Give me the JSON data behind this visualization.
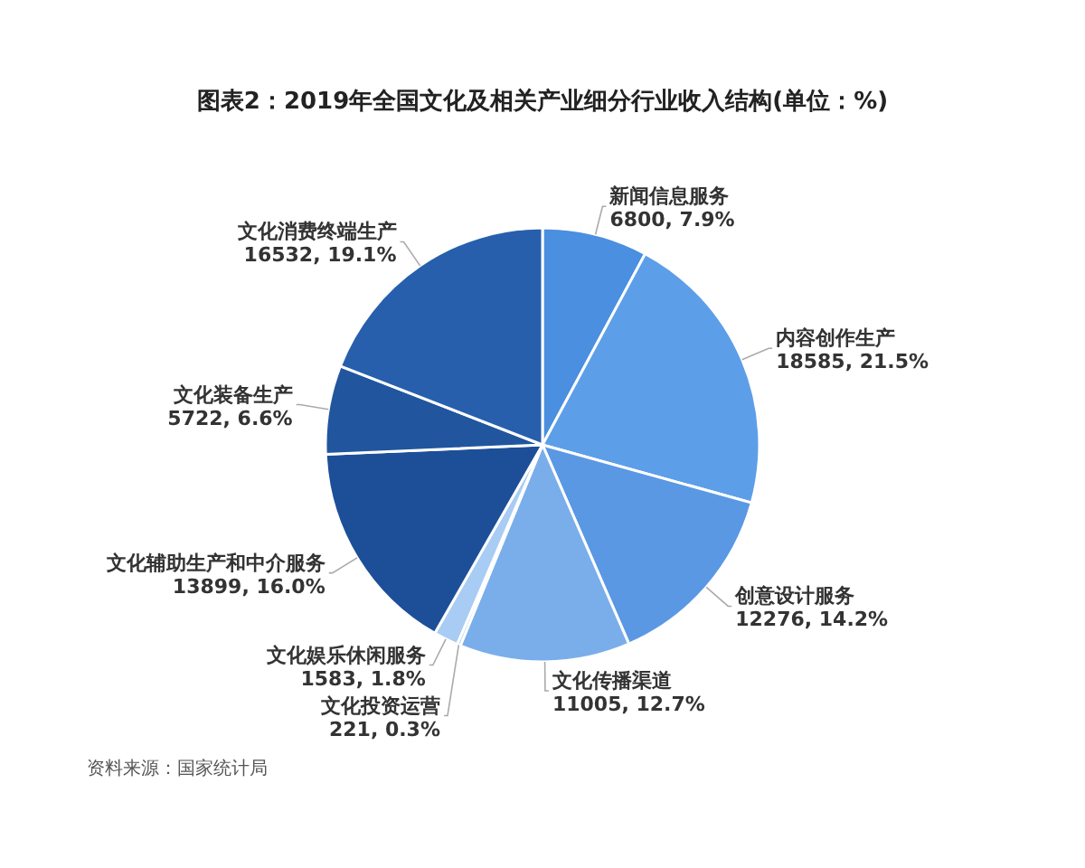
{
  "chart_data": {
    "type": "pie",
    "title": "图表2：2019年全国文化及相关产业细分行业收入结构(单位：%)",
    "categories": [
      "新闻信息服务",
      "内容创作生产",
      "创意设计服务",
      "文化传播渠道",
      "文化投资运营",
      "文化娱乐休闲服务",
      "文化辅助生产和中介服务",
      "文化装备生产",
      "文化消费终端生产"
    ],
    "values": [
      6800,
      18585,
      12276,
      11005,
      221,
      1583,
      13899,
      5722,
      16532
    ],
    "value_labels": [
      "6800, 7.9%",
      "18585, 21.5%",
      "12276, 14.2%",
      "11005, 12.7%",
      "221, 0.3%",
      "1583, 1.8%",
      "13899, 16.0%",
      "5722, 6.6%",
      "16532, 19.1%"
    ],
    "colors": [
      "#4a8fe0",
      "#5d9ee8",
      "#5a98e4",
      "#7aaeea",
      "#9cc4f0",
      "#a8ccf3",
      "#1d4f99",
      "#21569f",
      "#275fad"
    ],
    "annotations": [
      "资料来源：国家统计局"
    ]
  }
}
